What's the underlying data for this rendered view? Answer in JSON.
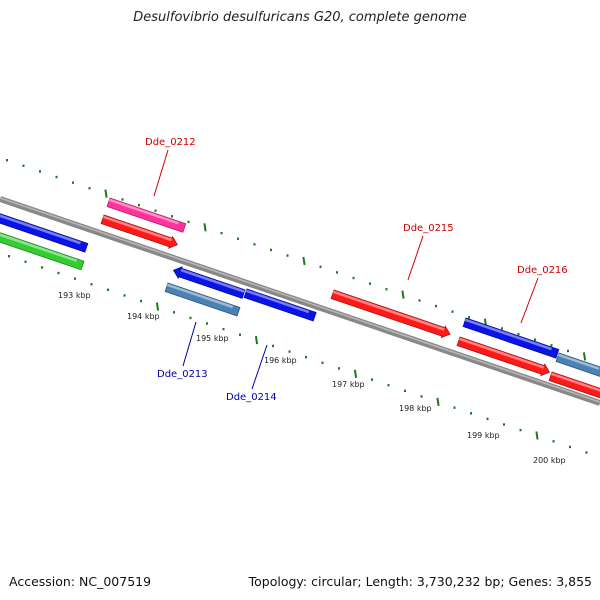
{
  "title": "Desulfovibrio desulfuricans G20, complete genome",
  "footer": {
    "accession": "Accession: NC_007519",
    "summary": "Topology: circular; Length: 3,730,232 bp; Genes: 3,855"
  },
  "colors": {
    "backbone": "#8a8a8a",
    "ticks": "#1a7a1a",
    "label_forward": "#cc0000",
    "label_reverse": "#0000aa",
    "pink": "#ff3399",
    "red": "#ff1a1a",
    "blue": "#0a14e6",
    "steel": "#4a82b4",
    "green": "#33cc33"
  },
  "kbp_labels": [
    "193 kbp",
    "194 kbp",
    "195 kbp",
    "196 kbp",
    "197 kbp",
    "198 kbp",
    "199 kbp",
    "200 kbp"
  ],
  "gene_labels": [
    {
      "text": "Dde_0212",
      "strand": "forward"
    },
    {
      "text": "Dde_0213",
      "strand": "reverse"
    },
    {
      "text": "Dde_0214",
      "strand": "reverse"
    },
    {
      "text": "Dde_0215",
      "strand": "forward"
    },
    {
      "text": "Dde_0216",
      "strand": "forward"
    }
  ]
}
